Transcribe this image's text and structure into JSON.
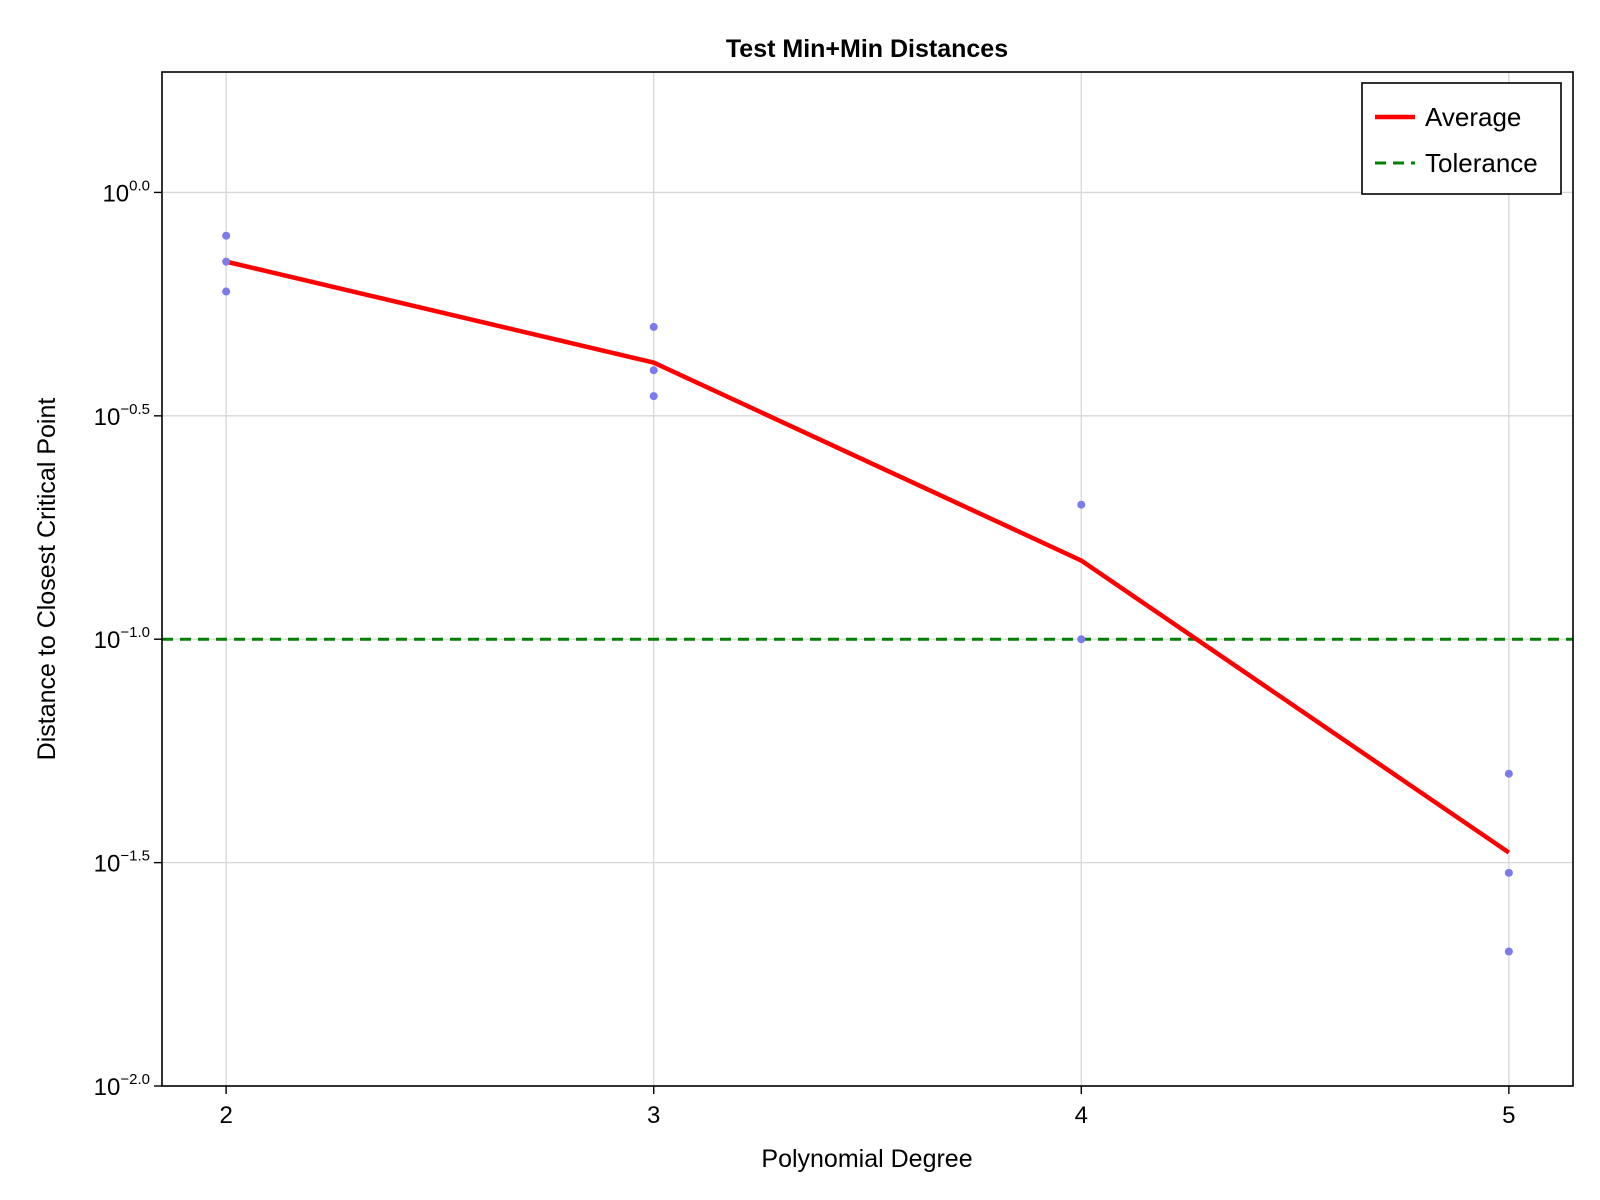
{
  "chart_data": {
    "type": "scatter",
    "title": "Test Min+Min Distances",
    "xlabel": "Polynomial Degree",
    "ylabel": "Distance to Closest Critical Point",
    "x_ticks": [
      2,
      3,
      4,
      5
    ],
    "x_range": [
      1.85,
      5.15
    ],
    "y_scale": "log10",
    "y_ticks": [
      {
        "base": "10",
        "exp": "0.0",
        "value": 1.0
      },
      {
        "base": "10",
        "exp": "−0.5",
        "value": 0.3162
      },
      {
        "base": "10",
        "exp": "−1.0",
        "value": 0.1
      },
      {
        "base": "10",
        "exp": "−1.5",
        "value": 0.03162
      },
      {
        "base": "10",
        "exp": "−2.0",
        "value": 0.01
      }
    ],
    "y_range": [
      0.01,
      1.86
    ],
    "grid": true,
    "legend_position": "top-right",
    "points": [
      {
        "x": 2,
        "y": 0.8
      },
      {
        "x": 2,
        "y": 0.7
      },
      {
        "x": 2,
        "y": 0.6
      },
      {
        "x": 3,
        "y": 0.5
      },
      {
        "x": 3,
        "y": 0.4
      },
      {
        "x": 3,
        "y": 0.35
      },
      {
        "x": 4,
        "y": 0.2
      },
      {
        "x": 4,
        "y": 0.1
      },
      {
        "x": 5,
        "y": 0.05
      },
      {
        "x": 5,
        "y": 0.03
      },
      {
        "x": 5,
        "y": 0.02
      }
    ],
    "series": [
      {
        "name": "Average",
        "x": [
          2,
          3,
          4,
          5
        ],
        "y": [
          0.7,
          0.416,
          0.15,
          0.0333
        ]
      }
    ],
    "reference_lines": [
      {
        "name": "Tolerance",
        "y": 0.1
      }
    ],
    "colors": {
      "average": "#ff0000",
      "tolerance": "#008000",
      "points": "#7b7bee"
    }
  }
}
